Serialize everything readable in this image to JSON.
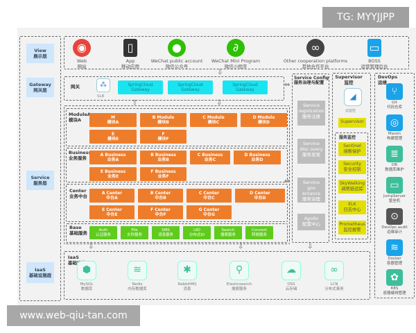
{
  "watermark_top": "TG: MYYJJPP",
  "watermark_bottom": "www.web-qiu-tan.com",
  "layers": [
    {
      "en": "View",
      "cn": "展示层"
    },
    {
      "en": "Gateway",
      "cn": "网关层"
    },
    {
      "en": "Service",
      "cn": "服务层"
    },
    {
      "en": "IaaS",
      "cn": "基础设施层"
    }
  ],
  "view": [
    {
      "en": "Web",
      "cn": "网站",
      "icon": "chrome-icon",
      "color": "#e8453c"
    },
    {
      "en": "App",
      "cn": "移动应用",
      "icon": "phone-icon",
      "color": "#333333"
    },
    {
      "en": "WeChat public account",
      "cn": "微信公众号",
      "icon": "wechat-icon",
      "color": "#2dc100"
    },
    {
      "en": "WeChat Mini Program",
      "cn": "微信小程序",
      "icon": "mini-program-icon",
      "color": "#2dc100"
    },
    {
      "en": "Other cooperation platforms",
      "cn": "其他合作平台",
      "icon": "link-icon",
      "color": "#444444"
    },
    {
      "en": "BOSS",
      "cn": "运营管理后台",
      "icon": "monitor-icon",
      "color": "#1aa3e8"
    }
  ],
  "gateway": {
    "label": "网关",
    "slb": "SLB",
    "items": [
      {
        "l1": "SpringCloud",
        "l2": "Gateway"
      },
      {
        "l1": "SpringCloud",
        "l2": "Gateway"
      },
      {
        "l1": "SpringCloud",
        "l2": "Gateway"
      }
    ]
  },
  "module": {
    "en": "ModuleA",
    "cn": "模块A",
    "items": [
      {
        "l1": "M",
        "l2": "模块A"
      },
      {
        "l1": "B Module",
        "l2": "模块B"
      },
      {
        "l1": "C Module",
        "l2": "模块C"
      },
      {
        "l1": "D Module",
        "l2": "模块D"
      },
      {
        "l1": "E",
        "l2": "模块E"
      },
      {
        "l1": "F",
        "l2": "模块F"
      }
    ]
  },
  "business": {
    "en": "Business",
    "cn": "业务服务",
    "items": [
      {
        "l1": "A Business",
        "l2": "业务A"
      },
      {
        "l1": "B Business",
        "l2": "业务B"
      },
      {
        "l1": "C Business",
        "l2": "业务C"
      },
      {
        "l1": "D Business",
        "l2": "业务D"
      },
      {
        "l1": "E Business",
        "l2": "业务E"
      },
      {
        "l1": "F Business",
        "l2": "业务F"
      }
    ]
  },
  "center": {
    "en": "Center",
    "cn": "业务中台",
    "items": [
      {
        "l1": "A Center",
        "l2": "中台A"
      },
      {
        "l1": "B Center",
        "l2": "中台B"
      },
      {
        "l1": "C Center",
        "l2": "中台C"
      },
      {
        "l1": "D Center",
        "l2": "中台D"
      },
      {
        "l1": "E Center",
        "l2": "中台E"
      },
      {
        "l1": "F Center",
        "l2": "中台F"
      },
      {
        "l1": "G Center",
        "l2": "中台G"
      }
    ]
  },
  "base": {
    "en": "Base",
    "cn": "基础服务",
    "items": [
      {
        "l1": "Auth",
        "l2": "认证服务"
      },
      {
        "l1": "File",
        "l2": "文件服务"
      },
      {
        "l1": "SMS",
        "l2": "消息服务"
      },
      {
        "l1": "UID",
        "l2": "分布式ID"
      },
      {
        "l1": "Search",
        "l2": "搜索服务"
      },
      {
        "l1": "Convert",
        "l2": "转换服务"
      }
    ]
  },
  "service_config": {
    "en": "Service Config",
    "cn": "服务治理与配置",
    "items": [
      {
        "l1": "Service registration",
        "l2": "服务注册"
      },
      {
        "l1": "Service disc overy",
        "l2": "服务发现"
      },
      {
        "l1": "Service gov ernance",
        "l2": "服务治理"
      },
      {
        "l1": "Apollo",
        "l2": "配置中心"
      }
    ]
  },
  "supervisor": {
    "en": "Supervisor",
    "cn": "监控",
    "cloud_label": "云监控",
    "main": "Supervisor",
    "sub_title": "服务监控",
    "items": [
      {
        "l1": "Sentinel",
        "l2": "熔断保护"
      },
      {
        "l1": "Security",
        "l2": "安全控制"
      },
      {
        "l1": "SkyWalking",
        "l2": "调用链追踪"
      },
      {
        "l1": "ELK",
        "l2": "日志中心"
      },
      {
        "l1": "Prometheus",
        "l2": "监控报警"
      }
    ]
  },
  "devops": {
    "en": "DevOps",
    "cn": "运维",
    "items": [
      {
        "l1": "Git",
        "l2": "代码仓库",
        "color": "#1aa3e8"
      },
      {
        "l1": "Maven",
        "l2": "构建管理",
        "color": "#1aa3e8"
      },
      {
        "l1": "DB",
        "l2": "数据库维护",
        "color": "#3cbf9a"
      },
      {
        "l1": "JumpServer",
        "l2": "堡垒机",
        "color": "#3cbf9a"
      },
      {
        "l1": "DevOps audit",
        "l2": "运维审计",
        "color": "#555555"
      },
      {
        "l1": "Docker",
        "l2": "容器管理",
        "color": "#1aa3e8"
      },
      {
        "l1": "K8S",
        "l2": "容器编排管理",
        "color": "#3cbf9a"
      }
    ]
  },
  "iaas": {
    "en": "IaaS",
    "cn": "基础设施",
    "items": [
      {
        "l1": "MySQL",
        "l2": "数据库"
      },
      {
        "l1": "Redis",
        "l2": "内存数据库"
      },
      {
        "l1": "RabbitMQ",
        "l2": "消息"
      },
      {
        "l1": "Elasticsearch",
        "l2": "搜索服务"
      },
      {
        "l1": "OSS",
        "l2": "云存储"
      },
      {
        "l1": "LCN",
        "l2": "分布式事务"
      }
    ]
  }
}
